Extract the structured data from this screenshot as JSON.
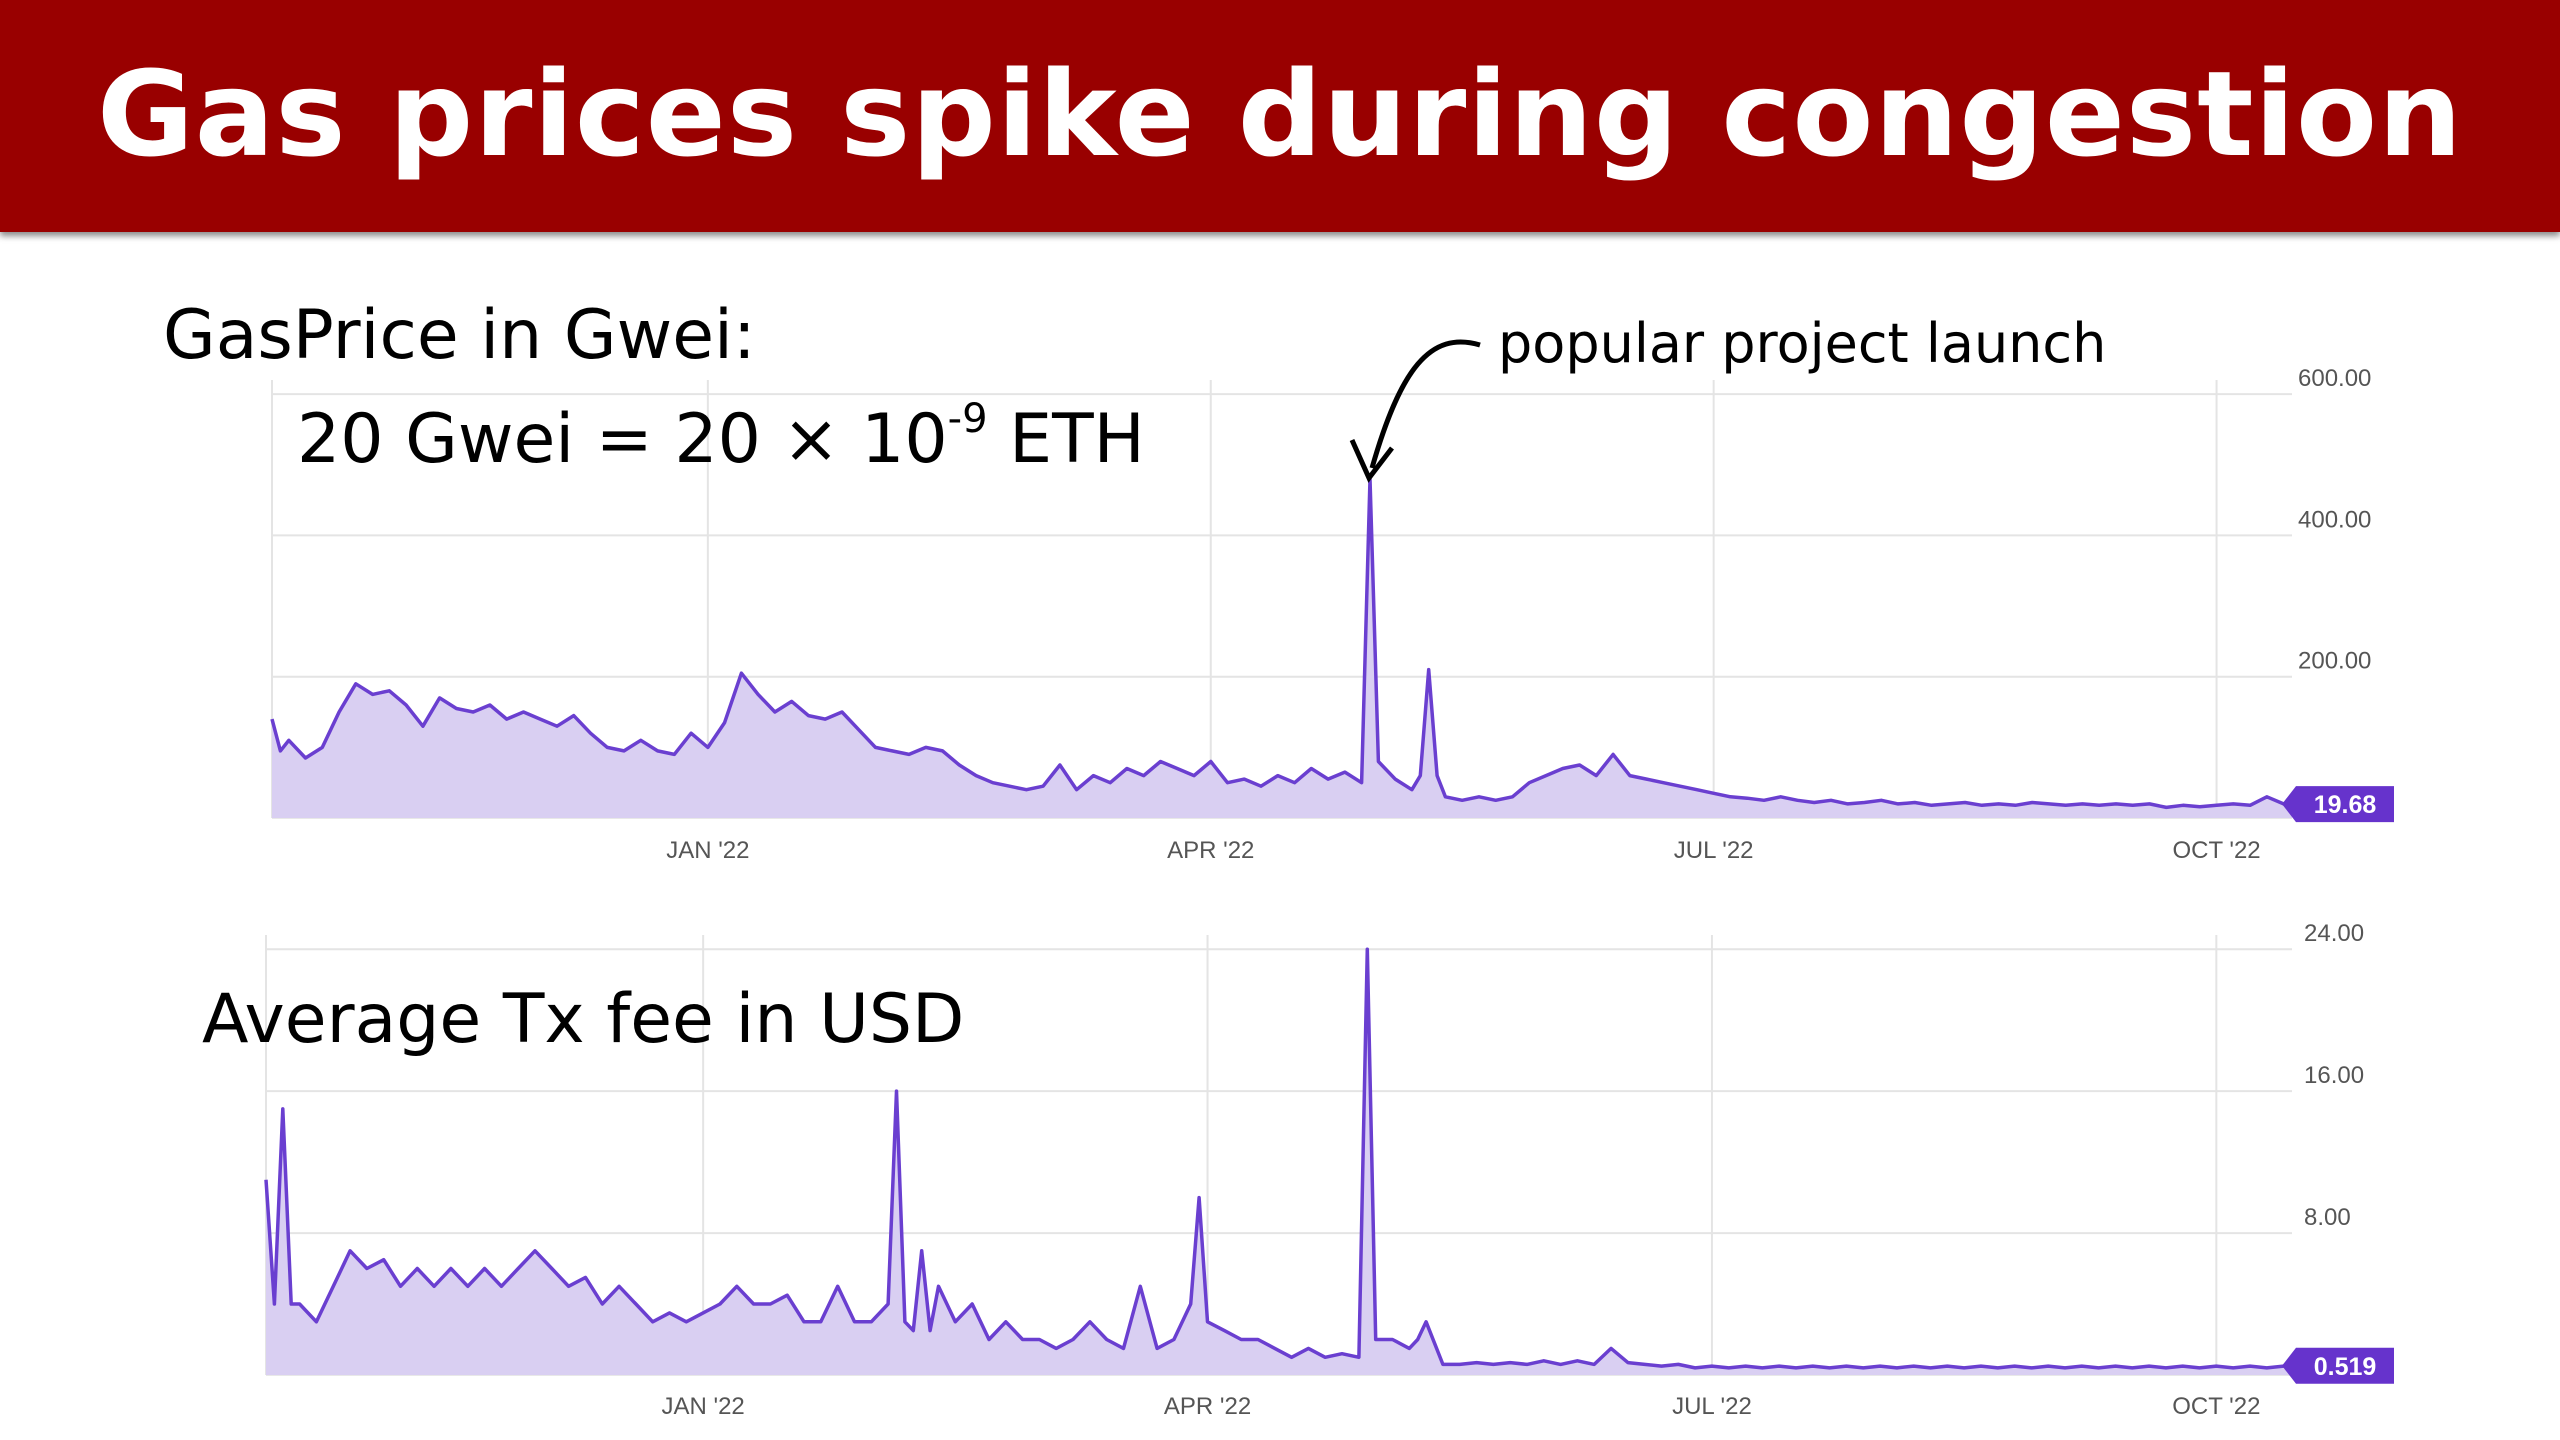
{
  "slide": {
    "title": "Gas prices spike during congestion",
    "gas_label": "GasPrice in Gwei:",
    "gwei_eq_pre": "20 Gwei = 20 × 10",
    "gwei_eq_exp": "-9",
    "gwei_eq_post": " ETH",
    "fee_label": "Average Tx fee in USD",
    "annotation": "popular project launch"
  },
  "colors": {
    "title_bar": "#990000",
    "line": "#6a3fd0",
    "fill": "#d9cff2",
    "badge": "#6633cc",
    "grid": "#e4e4e4"
  },
  "chart_data": [
    {
      "type": "area",
      "title": "",
      "x_ticks": [
        {
          "label": "JAN '22",
          "x": 3.1
        },
        {
          "label": "APR '22",
          "x": 6.1
        },
        {
          "label": "JUL '22",
          "x": 9.1
        },
        {
          "label": "OCT '22",
          "x": 12.1
        }
      ],
      "y_ticks": [
        {
          "label": "600.00",
          "y": 600
        },
        {
          "label": "400.00",
          "y": 400
        },
        {
          "label": "200.00",
          "y": 200
        }
      ],
      "xlim": [
        0.5,
        12.55
      ],
      "ylim": [
        0,
        620
      ],
      "current_value_label": "19.68",
      "current_value": 19.68,
      "points": [
        [
          0.5,
          140
        ],
        [
          0.55,
          95
        ],
        [
          0.6,
          110
        ],
        [
          0.7,
          85
        ],
        [
          0.8,
          100
        ],
        [
          0.9,
          150
        ],
        [
          1.0,
          190
        ],
        [
          1.1,
          175
        ],
        [
          1.2,
          180
        ],
        [
          1.3,
          160
        ],
        [
          1.4,
          130
        ],
        [
          1.5,
          170
        ],
        [
          1.6,
          155
        ],
        [
          1.7,
          150
        ],
        [
          1.8,
          160
        ],
        [
          1.9,
          140
        ],
        [
          2.0,
          150
        ],
        [
          2.1,
          140
        ],
        [
          2.2,
          130
        ],
        [
          2.3,
          145
        ],
        [
          2.4,
          120
        ],
        [
          2.5,
          100
        ],
        [
          2.6,
          95
        ],
        [
          2.7,
          110
        ],
        [
          2.8,
          95
        ],
        [
          2.9,
          90
        ],
        [
          3.0,
          120
        ],
        [
          3.1,
          100
        ],
        [
          3.2,
          135
        ],
        [
          3.3,
          205
        ],
        [
          3.4,
          175
        ],
        [
          3.5,
          150
        ],
        [
          3.6,
          165
        ],
        [
          3.7,
          145
        ],
        [
          3.8,
          140
        ],
        [
          3.9,
          150
        ],
        [
          4.0,
          125
        ],
        [
          4.1,
          100
        ],
        [
          4.2,
          95
        ],
        [
          4.3,
          90
        ],
        [
          4.4,
          100
        ],
        [
          4.5,
          95
        ],
        [
          4.6,
          75
        ],
        [
          4.7,
          60
        ],
        [
          4.8,
          50
        ],
        [
          4.9,
          45
        ],
        [
          5.0,
          40
        ],
        [
          5.1,
          45
        ],
        [
          5.2,
          75
        ],
        [
          5.3,
          40
        ],
        [
          5.4,
          60
        ],
        [
          5.5,
          50
        ],
        [
          5.6,
          70
        ],
        [
          5.7,
          60
        ],
        [
          5.8,
          80
        ],
        [
          5.9,
          70
        ],
        [
          6.0,
          60
        ],
        [
          6.1,
          80
        ],
        [
          6.2,
          50
        ],
        [
          6.3,
          55
        ],
        [
          6.4,
          45
        ],
        [
          6.5,
          60
        ],
        [
          6.6,
          50
        ],
        [
          6.7,
          70
        ],
        [
          6.8,
          55
        ],
        [
          6.9,
          65
        ],
        [
          7.0,
          50
        ],
        [
          7.05,
          480
        ],
        [
          7.1,
          80
        ],
        [
          7.2,
          55
        ],
        [
          7.3,
          40
        ],
        [
          7.35,
          60
        ],
        [
          7.4,
          210
        ],
        [
          7.45,
          60
        ],
        [
          7.5,
          30
        ],
        [
          7.6,
          25
        ],
        [
          7.7,
          30
        ],
        [
          7.8,
          25
        ],
        [
          7.9,
          30
        ],
        [
          8.0,
          50
        ],
        [
          8.1,
          60
        ],
        [
          8.2,
          70
        ],
        [
          8.3,
          75
        ],
        [
          8.4,
          60
        ],
        [
          8.5,
          90
        ],
        [
          8.6,
          60
        ],
        [
          8.7,
          55
        ],
        [
          8.8,
          50
        ],
        [
          8.9,
          45
        ],
        [
          9.0,
          40
        ],
        [
          9.1,
          35
        ],
        [
          9.2,
          30
        ],
        [
          9.3,
          28
        ],
        [
          9.4,
          25
        ],
        [
          9.5,
          30
        ],
        [
          9.6,
          25
        ],
        [
          9.7,
          22
        ],
        [
          9.8,
          25
        ],
        [
          9.9,
          20
        ],
        [
          10.0,
          22
        ],
        [
          10.1,
          25
        ],
        [
          10.2,
          20
        ],
        [
          10.3,
          22
        ],
        [
          10.4,
          18
        ],
        [
          10.5,
          20
        ],
        [
          10.6,
          22
        ],
        [
          10.7,
          18
        ],
        [
          10.8,
          20
        ],
        [
          10.9,
          18
        ],
        [
          11.0,
          22
        ],
        [
          11.1,
          20
        ],
        [
          11.2,
          18
        ],
        [
          11.3,
          20
        ],
        [
          11.4,
          18
        ],
        [
          11.5,
          20
        ],
        [
          11.6,
          18
        ],
        [
          11.7,
          20
        ],
        [
          11.8,
          15
        ],
        [
          11.9,
          18
        ],
        [
          12.0,
          16
        ],
        [
          12.1,
          18
        ],
        [
          12.2,
          20
        ],
        [
          12.3,
          18
        ],
        [
          12.4,
          30
        ],
        [
          12.5,
          20
        ],
        [
          12.55,
          19.68
        ]
      ]
    },
    {
      "type": "area",
      "title": "",
      "x_ticks": [
        {
          "label": "JAN '22",
          "x": 3.1
        },
        {
          "label": "APR '22",
          "x": 6.1
        },
        {
          "label": "JUL '22",
          "x": 9.1
        },
        {
          "label": "OCT '22",
          "x": 12.1
        }
      ],
      "y_ticks": [
        {
          "label": "24.00",
          "y": 24
        },
        {
          "label": "16.00",
          "y": 16
        },
        {
          "label": "8.00",
          "y": 8
        }
      ],
      "xlim": [
        0.5,
        12.55
      ],
      "ylim": [
        0,
        24.8
      ],
      "current_value_label": "0.519",
      "current_value": 0.519,
      "points": [
        [
          0.5,
          11
        ],
        [
          0.55,
          4
        ],
        [
          0.6,
          15
        ],
        [
          0.65,
          4
        ],
        [
          0.7,
          4
        ],
        [
          0.8,
          3
        ],
        [
          0.9,
          5
        ],
        [
          1.0,
          7
        ],
        [
          1.1,
          6
        ],
        [
          1.2,
          6.5
        ],
        [
          1.3,
          5
        ],
        [
          1.4,
          6
        ],
        [
          1.5,
          5
        ],
        [
          1.6,
          6
        ],
        [
          1.7,
          5
        ],
        [
          1.8,
          6
        ],
        [
          1.9,
          5
        ],
        [
          2.0,
          6
        ],
        [
          2.1,
          7
        ],
        [
          2.2,
          6
        ],
        [
          2.3,
          5
        ],
        [
          2.4,
          5.5
        ],
        [
          2.5,
          4
        ],
        [
          2.6,
          5
        ],
        [
          2.7,
          4
        ],
        [
          2.8,
          3
        ],
        [
          2.9,
          3.5
        ],
        [
          3.0,
          3
        ],
        [
          3.1,
          3.5
        ],
        [
          3.2,
          4
        ],
        [
          3.3,
          5
        ],
        [
          3.4,
          4
        ],
        [
          3.5,
          4
        ],
        [
          3.6,
          4.5
        ],
        [
          3.7,
          3
        ],
        [
          3.8,
          3
        ],
        [
          3.9,
          5
        ],
        [
          4.0,
          3
        ],
        [
          4.1,
          3
        ],
        [
          4.2,
          4
        ],
        [
          4.25,
          16
        ],
        [
          4.3,
          3
        ],
        [
          4.35,
          2.5
        ],
        [
          4.4,
          7
        ],
        [
          4.45,
          2.5
        ],
        [
          4.5,
          5
        ],
        [
          4.6,
          3
        ],
        [
          4.7,
          4
        ],
        [
          4.8,
          2
        ],
        [
          4.9,
          3
        ],
        [
          5.0,
          2
        ],
        [
          5.1,
          2
        ],
        [
          5.2,
          1.5
        ],
        [
          5.3,
          2
        ],
        [
          5.4,
          3
        ],
        [
          5.5,
          2
        ],
        [
          5.6,
          1.5
        ],
        [
          5.7,
          5
        ],
        [
          5.8,
          1.5
        ],
        [
          5.9,
          2
        ],
        [
          6.0,
          4
        ],
        [
          6.05,
          10
        ],
        [
          6.1,
          3
        ],
        [
          6.2,
          2.5
        ],
        [
          6.3,
          2
        ],
        [
          6.4,
          2
        ],
        [
          6.5,
          1.5
        ],
        [
          6.6,
          1
        ],
        [
          6.7,
          1.5
        ],
        [
          6.8,
          1
        ],
        [
          6.9,
          1.2
        ],
        [
          7.0,
          1.0
        ],
        [
          7.05,
          24
        ],
        [
          7.1,
          2
        ],
        [
          7.2,
          2
        ],
        [
          7.3,
          1.5
        ],
        [
          7.35,
          2
        ],
        [
          7.4,
          3
        ],
        [
          7.5,
          0.6
        ],
        [
          7.6,
          0.6
        ],
        [
          7.7,
          0.7
        ],
        [
          7.8,
          0.6
        ],
        [
          7.9,
          0.7
        ],
        [
          8.0,
          0.6
        ],
        [
          8.1,
          0.8
        ],
        [
          8.2,
          0.6
        ],
        [
          8.3,
          0.8
        ],
        [
          8.4,
          0.6
        ],
        [
          8.5,
          1.5
        ],
        [
          8.6,
          0.7
        ],
        [
          8.7,
          0.6
        ],
        [
          8.8,
          0.5
        ],
        [
          8.9,
          0.6
        ],
        [
          9.0,
          0.4
        ],
        [
          9.1,
          0.5
        ],
        [
          9.2,
          0.4
        ],
        [
          9.3,
          0.5
        ],
        [
          9.4,
          0.4
        ],
        [
          9.5,
          0.5
        ],
        [
          9.6,
          0.4
        ],
        [
          9.7,
          0.5
        ],
        [
          9.8,
          0.4
        ],
        [
          9.9,
          0.5
        ],
        [
          10.0,
          0.4
        ],
        [
          10.1,
          0.5
        ],
        [
          10.2,
          0.4
        ],
        [
          10.3,
          0.5
        ],
        [
          10.4,
          0.4
        ],
        [
          10.5,
          0.5
        ],
        [
          10.6,
          0.4
        ],
        [
          10.7,
          0.5
        ],
        [
          10.8,
          0.4
        ],
        [
          10.9,
          0.5
        ],
        [
          11.0,
          0.4
        ],
        [
          11.1,
          0.5
        ],
        [
          11.2,
          0.4
        ],
        [
          11.3,
          0.5
        ],
        [
          11.4,
          0.4
        ],
        [
          11.5,
          0.5
        ],
        [
          11.6,
          0.4
        ],
        [
          11.7,
          0.5
        ],
        [
          11.8,
          0.4
        ],
        [
          11.9,
          0.5
        ],
        [
          12.0,
          0.4
        ],
        [
          12.1,
          0.5
        ],
        [
          12.2,
          0.4
        ],
        [
          12.3,
          0.5
        ],
        [
          12.4,
          0.4
        ],
        [
          12.5,
          0.5
        ],
        [
          12.55,
          0.519
        ]
      ]
    }
  ]
}
